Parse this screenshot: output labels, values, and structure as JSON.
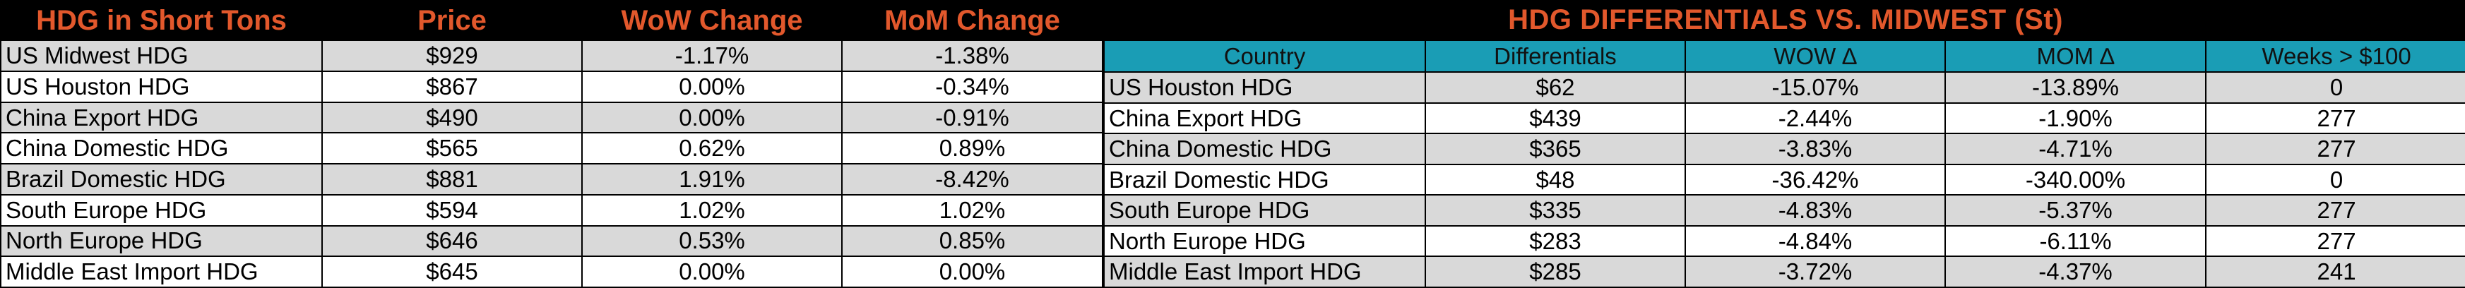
{
  "left_table": {
    "headers": [
      "HDG in Short Tons",
      "Price",
      "WoW Change",
      "MoM Change"
    ],
    "rows": [
      {
        "name": "US Midwest HDG",
        "price": "$929",
        "wow": "-1.17%",
        "mom": "-1.38%"
      },
      {
        "name": "US Houston HDG",
        "price": "$867",
        "wow": "0.00%",
        "mom": "-0.34%"
      },
      {
        "name": "China Export HDG",
        "price": "$490",
        "wow": "0.00%",
        "mom": "-0.91%"
      },
      {
        "name": "China Domestic HDG",
        "price": "$565",
        "wow": "0.62%",
        "mom": "0.89%"
      },
      {
        "name": "Brazil Domestic HDG",
        "price": "$881",
        "wow": "1.91%",
        "mom": "-8.42%"
      },
      {
        "name": "South Europe HDG",
        "price": "$594",
        "wow": "1.02%",
        "mom": "1.02%"
      },
      {
        "name": "North Europe HDG",
        "price": "$646",
        "wow": "0.53%",
        "mom": "0.85%"
      },
      {
        "name": "Middle East Import HDG",
        "price": "$645",
        "wow": "0.00%",
        "mom": "0.00%"
      }
    ]
  },
  "right_table": {
    "title": "HDG DIFFERENTIALS VS. MIDWEST (St)",
    "headers": [
      "Country",
      "Differentials",
      "WOW ∆",
      "MOM ∆",
      "Weeks > $100"
    ],
    "rows": [
      {
        "name": "US Houston HDG",
        "diff": "$62",
        "wow": "-15.07%",
        "mom": "-13.89%",
        "weeks": "0"
      },
      {
        "name": "China Export HDG",
        "diff": "$439",
        "wow": "-2.44%",
        "mom": "-1.90%",
        "weeks": "277"
      },
      {
        "name": "China Domestic HDG",
        "diff": "$365",
        "wow": "-3.83%",
        "mom": "-4.71%",
        "weeks": "277"
      },
      {
        "name": "Brazil Domestic HDG",
        "diff": "$48",
        "wow": "-36.42%",
        "mom": "-340.00%",
        "weeks": "0"
      },
      {
        "name": "South Europe HDG",
        "diff": "$335",
        "wow": "-4.83%",
        "mom": "-5.37%",
        "weeks": "277"
      },
      {
        "name": "North Europe HDG",
        "diff": "$283",
        "wow": "-4.84%",
        "mom": "-6.11%",
        "weeks": "277"
      },
      {
        "name": "Middle East Import HDG",
        "diff": "$285",
        "wow": "-3.72%",
        "mom": "-4.37%",
        "weeks": "241"
      }
    ]
  },
  "colors": {
    "header_text": "#e2582c",
    "subheader_bg": "#1a9db5",
    "row_shaded": "#d9d9d9",
    "row_plain": "#ffffff",
    "background": "#000000"
  }
}
